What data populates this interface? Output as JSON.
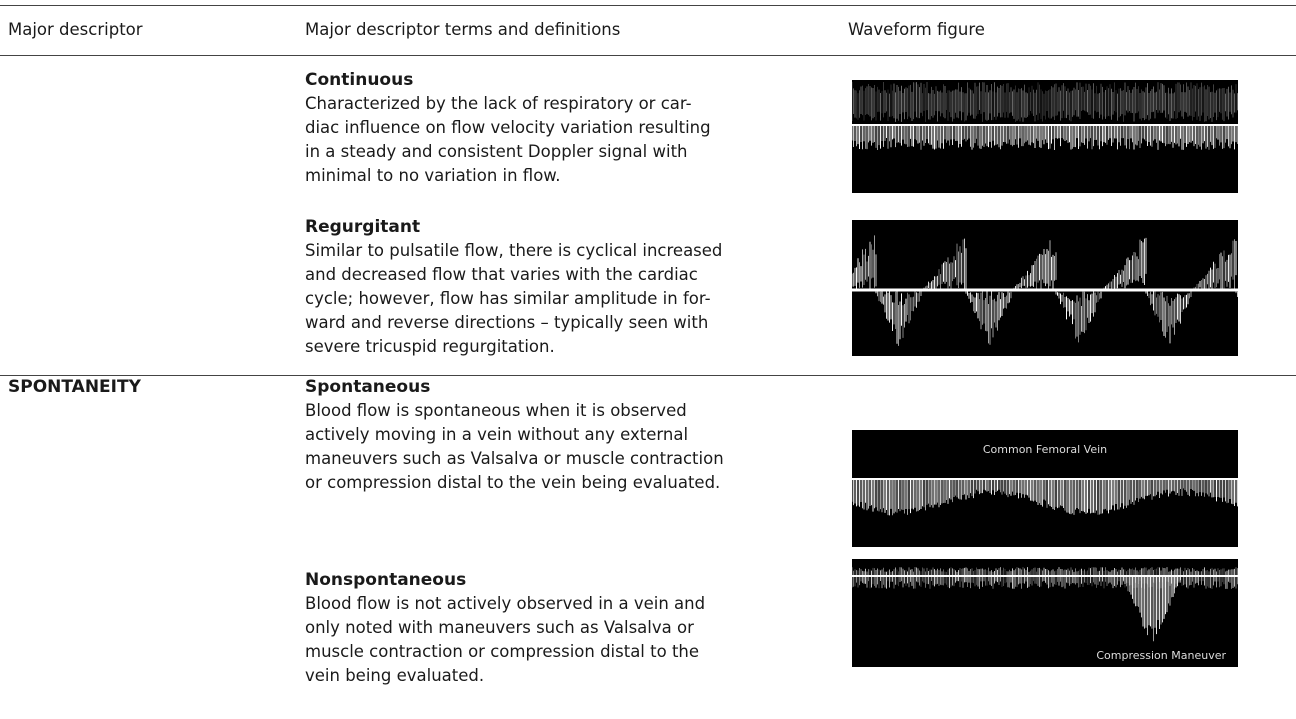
{
  "table": {
    "header": [
      "Major descriptor",
      "Major descriptor terms and definitions",
      "Waveform figure"
    ],
    "groups": [
      {
        "entries": [
          {
            "term": "Continuous",
            "definition_lines": [
              "Characterized by the lack of respiratory or car-",
              "diac influence on flow velocity variation resulting",
              "in a steady and consistent Doppler signal with",
              "minimal to no variation in flow."
            ]
          },
          {
            "term": "Regurgitant",
            "definition_lines": [
              "Similar to pulsatile flow, there is cyclical increased",
              "and decreased flow that varies with the cardiac",
              "cycle; however, flow has similar amplitude in for-",
              "ward and reverse directions – typically seen with",
              "severe tricuspid regurgitation."
            ]
          }
        ]
      },
      {
        "descriptor": "SPONTANEITY",
        "entries": [
          {
            "term": "Spontaneous",
            "definition_lines": [
              "Blood flow is spontaneous when it is observed",
              "actively moving in a vein without any external",
              "maneuvers such as Valsalva or muscle contraction",
              "or compression distal to the vein being evaluated."
            ],
            "figure_label": "Common Femoral Vein"
          },
          {
            "term": "Nonspontaneous",
            "definition_lines": [
              "Blood flow is not actively observed in a vein and",
              "only noted with maneuvers such as Valsalva or",
              "muscle contraction or compression distal to the",
              "vein being evaluated."
            ],
            "figure_label": "Compression Maneuver"
          }
        ]
      }
    ]
  }
}
